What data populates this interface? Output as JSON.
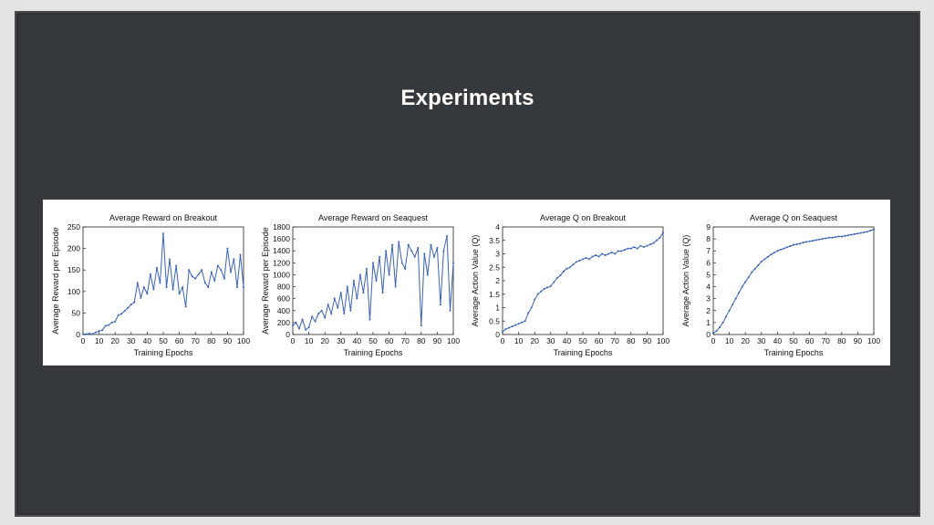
{
  "slide": {
    "title": "Experiments",
    "background": "#36393c",
    "title_color": "#ffffff"
  },
  "chart_data": [
    {
      "type": "line",
      "title": "Average Reward on Breakout",
      "xlabel": "Training Epochs",
      "ylabel": "Average Reward per Episode",
      "xlim": [
        0,
        100
      ],
      "ylim": [
        0,
        250
      ],
      "xticks": [
        0,
        10,
        20,
        30,
        40,
        50,
        60,
        70,
        80,
        90,
        100
      ],
      "yticks": [
        0,
        50,
        100,
        150,
        200,
        250
      ],
      "color": "#3b62b0",
      "series": [
        {
          "x": [
            0,
            2,
            4,
            6,
            8,
            10,
            12,
            14,
            16,
            18,
            20,
            22,
            24,
            26,
            28,
            30,
            32,
            34,
            36,
            38,
            40,
            42,
            44,
            46,
            48,
            50,
            52,
            54,
            56,
            58,
            60,
            62,
            64,
            66,
            68,
            70,
            72,
            74,
            76,
            78,
            80,
            82,
            84,
            86,
            88,
            90,
            92,
            94,
            96,
            98,
            100
          ],
          "values": [
            1,
            1,
            2,
            1,
            5,
            8,
            10,
            20,
            22,
            28,
            30,
            45,
            48,
            55,
            62,
            70,
            75,
            120,
            85,
            110,
            95,
            140,
            105,
            155,
            120,
            235,
            110,
            175,
            105,
            160,
            95,
            110,
            65,
            150,
            135,
            130,
            140,
            150,
            120,
            110,
            145,
            125,
            160,
            150,
            130,
            200,
            145,
            175,
            110,
            185,
            110
          ]
        }
      ]
    },
    {
      "type": "line",
      "title": "Average Reward on Seaquest",
      "xlabel": "Training Epochs",
      "ylabel": "Average Reward per Episode",
      "xlim": [
        0,
        100
      ],
      "ylim": [
        0,
        1800
      ],
      "xticks": [
        0,
        10,
        20,
        30,
        40,
        50,
        60,
        70,
        80,
        90,
        100
      ],
      "yticks": [
        0,
        200,
        400,
        600,
        800,
        1000,
        1200,
        1400,
        1600,
        1800
      ],
      "color": "#3b62b0",
      "series": [
        {
          "x": [
            0,
            2,
            4,
            6,
            8,
            10,
            12,
            14,
            16,
            18,
            20,
            22,
            24,
            26,
            28,
            30,
            32,
            34,
            36,
            38,
            40,
            42,
            44,
            46,
            48,
            50,
            52,
            54,
            56,
            58,
            60,
            62,
            64,
            66,
            68,
            70,
            72,
            74,
            76,
            78,
            80,
            82,
            84,
            86,
            88,
            90,
            92,
            94,
            96,
            98,
            100
          ],
          "values": [
            150,
            200,
            100,
            250,
            80,
            120,
            300,
            220,
            350,
            400,
            280,
            500,
            350,
            600,
            450,
            700,
            350,
            800,
            400,
            900,
            600,
            1000,
            700,
            1100,
            250,
            1200,
            900,
            1300,
            700,
            1400,
            1000,
            1500,
            800,
            1550,
            1200,
            1100,
            1500,
            1400,
            1300,
            1450,
            150,
            1350,
            1000,
            1500,
            1300,
            1450,
            500,
            1400,
            1650,
            400,
            1200
          ]
        }
      ]
    },
    {
      "type": "line",
      "title": "Average Q on Breakout",
      "xlabel": "Training Epochs",
      "ylabel": "Average Action Value (Q)",
      "xlim": [
        0,
        100
      ],
      "ylim": [
        0,
        4
      ],
      "xticks": [
        0,
        10,
        20,
        30,
        40,
        50,
        60,
        70,
        80,
        90,
        100
      ],
      "yticks": [
        0,
        0.5,
        1,
        1.5,
        2,
        2.5,
        3,
        3.5,
        4
      ],
      "color": "#3b62b0",
      "series": [
        {
          "x": [
            0,
            2,
            4,
            6,
            8,
            10,
            12,
            14,
            16,
            18,
            20,
            22,
            24,
            26,
            28,
            30,
            32,
            34,
            36,
            38,
            40,
            42,
            44,
            46,
            48,
            50,
            52,
            54,
            56,
            58,
            60,
            62,
            64,
            66,
            68,
            70,
            72,
            74,
            76,
            78,
            80,
            82,
            84,
            86,
            88,
            90,
            92,
            94,
            96,
            98,
            100
          ],
          "values": [
            0.1,
            0.2,
            0.25,
            0.3,
            0.35,
            0.4,
            0.45,
            0.5,
            0.8,
            1.0,
            1.3,
            1.5,
            1.6,
            1.7,
            1.75,
            1.8,
            1.95,
            2.1,
            2.2,
            2.35,
            2.45,
            2.5,
            2.6,
            2.7,
            2.75,
            2.8,
            2.85,
            2.8,
            2.9,
            2.95,
            2.9,
            3.0,
            2.95,
            3.0,
            3.05,
            3.0,
            3.1,
            3.1,
            3.15,
            3.2,
            3.2,
            3.25,
            3.2,
            3.3,
            3.25,
            3.3,
            3.35,
            3.4,
            3.5,
            3.6,
            3.8
          ]
        }
      ]
    },
    {
      "type": "line",
      "title": "Average Q on Seaquest",
      "xlabel": "Training Epochs",
      "ylabel": "Average Action Value (Q)",
      "xlim": [
        0,
        100
      ],
      "ylim": [
        0,
        9
      ],
      "xticks": [
        0,
        10,
        20,
        30,
        40,
        50,
        60,
        70,
        80,
        90,
        100
      ],
      "yticks": [
        0,
        1,
        2,
        3,
        4,
        5,
        6,
        7,
        8,
        9
      ],
      "color": "#3b62b0",
      "series": [
        {
          "x": [
            0,
            2,
            4,
            6,
            8,
            10,
            12,
            14,
            16,
            18,
            20,
            22,
            24,
            26,
            28,
            30,
            32,
            34,
            36,
            38,
            40,
            42,
            44,
            46,
            48,
            50,
            52,
            54,
            56,
            58,
            60,
            62,
            64,
            66,
            68,
            70,
            72,
            74,
            76,
            78,
            80,
            82,
            84,
            86,
            88,
            90,
            92,
            94,
            96,
            98,
            100
          ],
          "values": [
            0.1,
            0.3,
            0.6,
            1.0,
            1.5,
            2.0,
            2.5,
            3.0,
            3.5,
            4.0,
            4.4,
            4.8,
            5.2,
            5.5,
            5.8,
            6.1,
            6.3,
            6.5,
            6.7,
            6.85,
            7.0,
            7.1,
            7.2,
            7.3,
            7.4,
            7.5,
            7.55,
            7.6,
            7.7,
            7.75,
            7.8,
            7.85,
            7.9,
            7.95,
            8.0,
            8.05,
            8.1,
            8.1,
            8.15,
            8.2,
            8.2,
            8.25,
            8.3,
            8.35,
            8.4,
            8.45,
            8.5,
            8.55,
            8.6,
            8.7,
            8.8
          ]
        }
      ]
    }
  ]
}
